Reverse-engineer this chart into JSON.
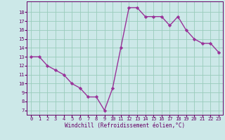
{
  "x": [
    0,
    1,
    2,
    3,
    4,
    5,
    6,
    7,
    8,
    9,
    10,
    11,
    12,
    13,
    14,
    15,
    16,
    17,
    18,
    19,
    20,
    21,
    22,
    23
  ],
  "y": [
    13,
    13,
    12,
    11.5,
    11,
    10,
    9.5,
    8.5,
    8.5,
    7,
    9.5,
    14,
    18.5,
    18.5,
    17.5,
    17.5,
    17.5,
    16.5,
    17.5,
    16,
    15,
    14.5,
    14.5,
    13.5
  ],
  "xlim": [
    -0.5,
    23.5
  ],
  "ylim": [
    6.5,
    19.2
  ],
  "yticks": [
    7,
    8,
    9,
    10,
    11,
    12,
    13,
    14,
    15,
    16,
    17,
    18
  ],
  "xticks": [
    0,
    1,
    2,
    3,
    4,
    5,
    6,
    7,
    8,
    9,
    10,
    11,
    12,
    13,
    14,
    15,
    16,
    17,
    18,
    19,
    20,
    21,
    22,
    23
  ],
  "xlabel": "Windchill (Refroidissement éolien,°C)",
  "line_color": "#993399",
  "marker": "D",
  "marker_size": 2.2,
  "bg_color": "#cce8e8",
  "grid_color": "#99ccbb",
  "xlabel_color": "#660066",
  "tick_color": "#660066",
  "line_width": 1.0,
  "xlabel_fontsize": 5.5,
  "tick_fontsize": 5.0
}
